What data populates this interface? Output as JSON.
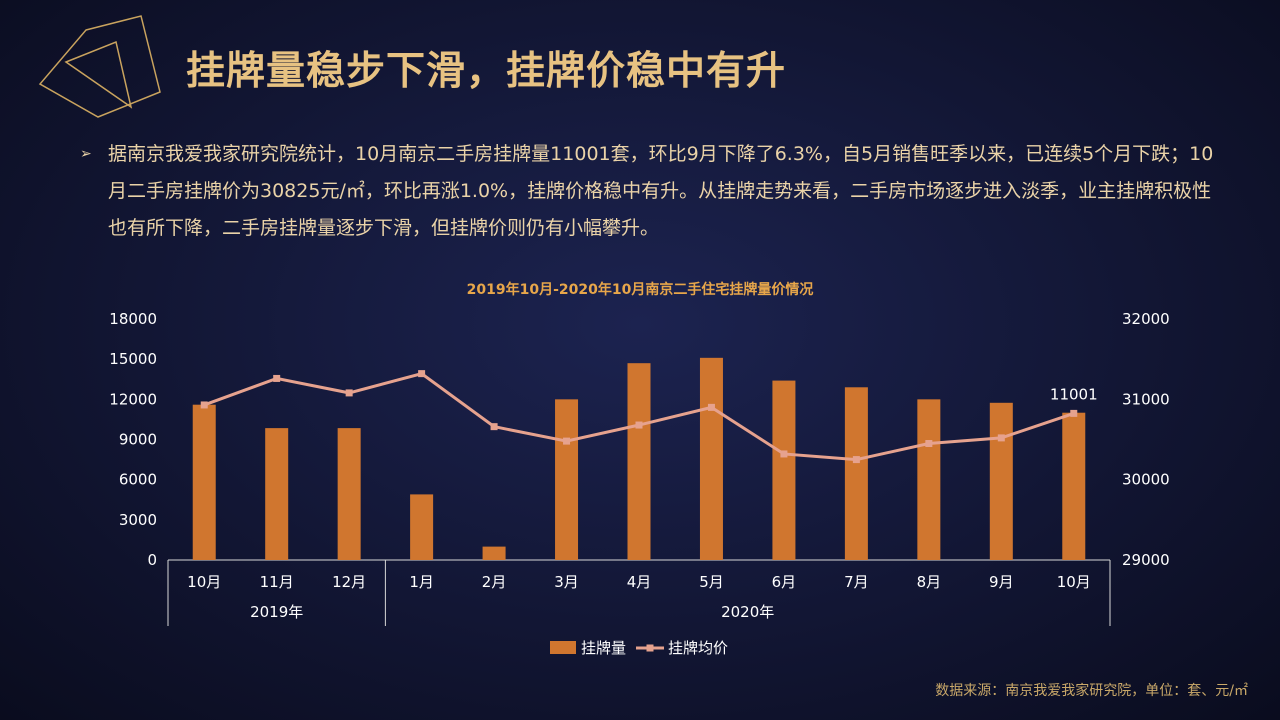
{
  "slide": {
    "title": "挂牌量稳步下滑，挂牌价稳中有升",
    "bullet": "➢",
    "paragraph": "据南京我爱我家研究院统计，10月南京二手房挂牌量11001套，环比9月下降了6.3%，自5月销售旺季以来，已连续5个月下跌；10月二手房挂牌价为30825元/㎡，环比再涨1.0%，挂牌价格稳中有升。从挂牌走势来看，二手房市场逐步进入淡季，业主挂牌积极性也有所下降，二手房挂牌量逐步下滑，但挂牌价则仍有小幅攀升。",
    "source": "数据来源：南京我爱我家研究院，单位：套、元/㎡"
  },
  "colors": {
    "background": "#121634",
    "title": "#e7c282",
    "bar": "#d0762f",
    "line": "#e6a28e",
    "chart_title": "#e7a64a"
  },
  "chart_data": {
    "type": "bar",
    "title": "2019年10月-2020年10月南京二手住宅挂牌量价情况",
    "categories": [
      "10月",
      "11月",
      "12月",
      "1月",
      "2月",
      "3月",
      "4月",
      "5月",
      "6月",
      "7月",
      "8月",
      "9月",
      "10月"
    ],
    "year_groups": [
      {
        "label": "2019年",
        "count": 3
      },
      {
        "label": "2020年",
        "count": 10
      }
    ],
    "series": [
      {
        "name": "挂牌量",
        "type": "bar",
        "axis": "left",
        "values": [
          11600,
          9850,
          9850,
          4900,
          1000,
          12000,
          14700,
          15100,
          13400,
          12900,
          12000,
          11741,
          11001
        ]
      },
      {
        "name": "挂牌均价",
        "type": "line",
        "axis": "right",
        "values": [
          30930,
          31260,
          31080,
          31320,
          30660,
          30480,
          30680,
          30900,
          30320,
          30250,
          30450,
          30520,
          30825
        ]
      }
    ],
    "y_left": {
      "min": 0,
      "max": 18000,
      "ticks": [
        "0",
        "3000",
        "6000",
        "9000",
        "12000",
        "15000",
        "18000"
      ]
    },
    "y_right": {
      "min": 29000,
      "max": 32000,
      "ticks": [
        "29000",
        "30000",
        "31000",
        "32000"
      ]
    },
    "data_labels": [
      {
        "series": 0,
        "index": 12,
        "text": "11001"
      }
    ],
    "legend": "bottom",
    "grid": false
  }
}
